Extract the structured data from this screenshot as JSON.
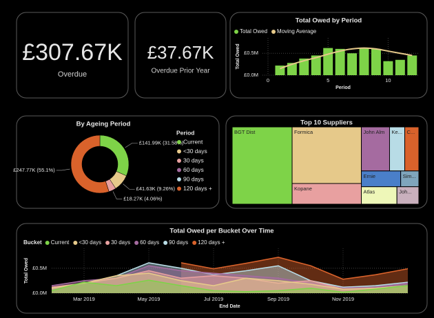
{
  "cards": [
    {
      "value": "£307.67K",
      "label": "Overdue"
    },
    {
      "value": "£37.67K",
      "label": "Overdue Prior Year"
    }
  ],
  "chart_data": [
    {
      "type": "combo",
      "title": "Total Owed by Period",
      "x": [
        1,
        2,
        3,
        4,
        5,
        6,
        7,
        8,
        9,
        10,
        11,
        12
      ],
      "series": [
        {
          "name": "Total Owed",
          "type": "bar",
          "color": "#7ed348",
          "values": [
            0.22,
            0.28,
            0.38,
            0.45,
            0.62,
            0.6,
            0.5,
            0.62,
            0.6,
            0.32,
            0.35,
            0.45
          ]
        },
        {
          "name": "Moving Average",
          "type": "line",
          "color": "#e6c98a",
          "values": [
            0.15,
            0.25,
            0.33,
            0.4,
            0.48,
            0.55,
            0.6,
            0.62,
            0.6,
            0.55,
            0.5,
            0.45
          ]
        }
      ],
      "xlim": [
        0,
        12.5
      ],
      "xticks": [
        0,
        5,
        10
      ],
      "ylim": [
        0,
        0.85
      ],
      "yticks": [
        {
          "value": 0,
          "label": "£0.0M"
        },
        {
          "value": 0.5,
          "label": "£0.5M"
        }
      ],
      "xlabel": "Period",
      "ylabel": "Total Owed",
      "grid": true
    },
    {
      "type": "donut",
      "title": "By Ageing Period",
      "legend_title": "Period",
      "categories": [
        "Current",
        "<30 days",
        "30 days",
        "60 days",
        "90 days",
        "120 days +"
      ],
      "colors": [
        "#7ed348",
        "#e6c98a",
        "#e8a0a0",
        "#a56ba0",
        "#b8dce6",
        "#d9622b"
      ],
      "values": [
        141.99,
        41.63,
        18.27,
        0,
        0,
        247.77
      ],
      "value_labels": [
        "£141.99K (31.58%)",
        "£41.63K (9.26%)",
        "£18.27K (4.06%)",
        null,
        null,
        "£247.77K (55.1%)"
      ]
    },
    {
      "type": "treemap",
      "title": "Top 10 Suppliers",
      "categories": [
        "BGT Dist",
        "Formica",
        "Kopane",
        "John Alm",
        "Ke...",
        "C...",
        "Ernie",
        "Sim...",
        "Atlas",
        "Joh..."
      ],
      "values": [
        97,
        82,
        30,
        26,
        14,
        13,
        13,
        6,
        13,
        8
      ],
      "colors": [
        "#7ed348",
        "#e6c98a",
        "#e8a0a0",
        "#a56ba0",
        "#b8dce6",
        "#d9622b",
        "#4a7fc9",
        "#7fa6bd",
        "#eef7b8",
        "#c9b0bd"
      ]
    },
    {
      "type": "area",
      "title": "Total Owed per Bucket Over Time",
      "legend_title": "Bucket",
      "categories": [
        null,
        "Mar 2019",
        null,
        "May 2019",
        null,
        "Jul 2019",
        null,
        "Sep 2019",
        null,
        "Nov 2019",
        null,
        null
      ],
      "series": [
        {
          "name": "Current",
          "color": "#7ed348",
          "values": [
            0.05,
            0.22,
            0.15,
            0.26,
            0.15,
            0.05,
            0.03,
            0.05,
            0.1,
            0.02,
            0.08,
            0.15
          ]
        },
        {
          "name": "<30 days",
          "color": "#e6c98a",
          "values": [
            0.1,
            0.2,
            0.35,
            0.4,
            0.25,
            0.15,
            0.3,
            0.25,
            0.18,
            0.08,
            0.1,
            0.15
          ]
        },
        {
          "name": "30 days",
          "color": "#e8a0a0",
          "values": [
            0.12,
            0.2,
            0.3,
            0.45,
            0.3,
            0.35,
            0.3,
            0.2,
            0.25,
            0.08,
            0.1,
            0.15
          ]
        },
        {
          "name": "60 days",
          "color": "#a56ba0",
          "values": [
            0.15,
            0.25,
            0.3,
            0.55,
            0.45,
            0.4,
            0.35,
            0.3,
            0.2,
            0.1,
            0.12,
            0.2
          ]
        },
        {
          "name": "90 days",
          "color": "#b8dce6",
          "values": [
            0.1,
            0.2,
            0.35,
            0.61,
            0.5,
            0.37,
            0.45,
            0.55,
            0.25,
            0.12,
            0.15,
            0.22
          ]
        },
        {
          "name": "120 days +",
          "color": "#d9622b",
          "values": [
            null,
            null,
            null,
            null,
            0.61,
            0.49,
            0.6,
            0.72,
            0.55,
            0.28,
            0.37,
            0.49
          ]
        }
      ],
      "ylim": [
        0,
        0.9
      ],
      "yticks": [
        {
          "value": 0,
          "label": "£0.0M"
        },
        {
          "value": 0.5,
          "label": "£0.5M"
        }
      ],
      "xlabel": "End Date",
      "ylabel": "Total Owed",
      "grid": true
    }
  ]
}
